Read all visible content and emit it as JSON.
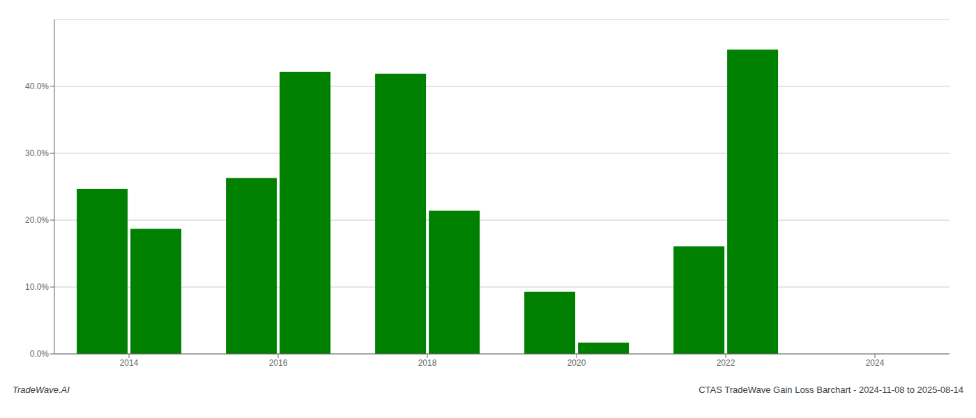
{
  "chart_data": {
    "type": "bar",
    "categories": [
      "2014",
      "2016",
      "2018",
      "2020",
      "2022",
      "2024"
    ],
    "series": [
      {
        "color": "#008000",
        "values": [
          0.247,
          0.263,
          0.419,
          0.093,
          0.161,
          0.0
        ]
      },
      {
        "color": "#008000",
        "values": [
          0.187,
          0.422,
          0.214,
          0.017,
          0.455,
          0.0
        ]
      }
    ],
    "ylim": [
      0,
      0.5
    ],
    "yticks": [
      {
        "value": 0.0,
        "label": "0.0%"
      },
      {
        "value": 0.1,
        "label": "10.0%"
      },
      {
        "value": 0.2,
        "label": "20.0%"
      },
      {
        "value": 0.3,
        "label": "30.0%"
      },
      {
        "value": 0.4,
        "label": "40.0%"
      }
    ],
    "grid": true,
    "annotations": [
      "TradeWave.AI",
      "CTAS TradeWave Gain Loss Barchart - 2024-11-08 to 2025-08-14"
    ]
  }
}
